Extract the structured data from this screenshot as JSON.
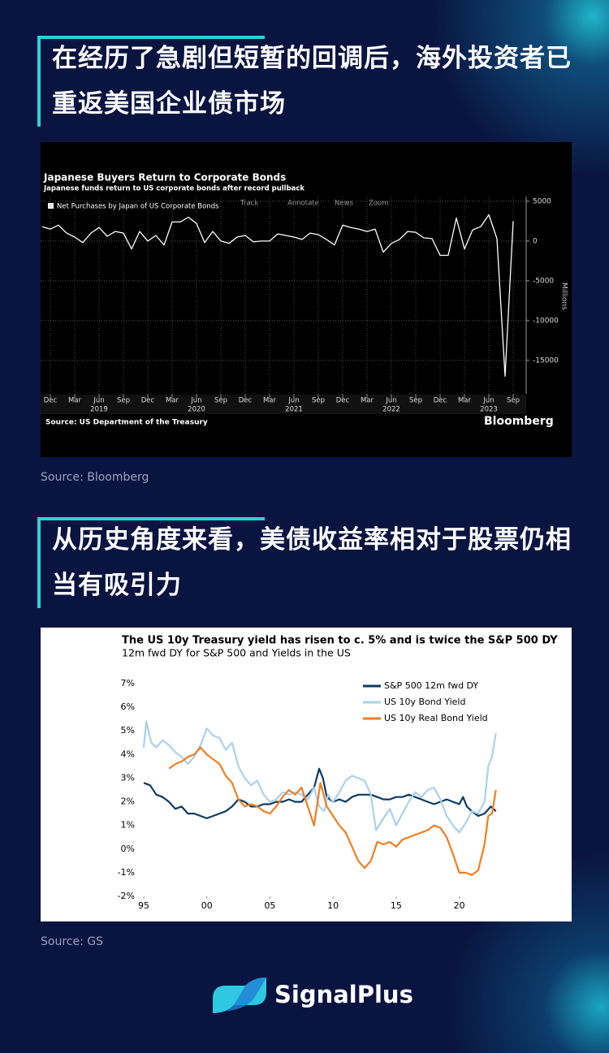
{
  "heading_1": "在经历了急剧但短暂的回调后，海外投资者已重返美国企业债市场",
  "source_1": "Source: Bloomberg",
  "heading_2": "从历史角度来看，美债收益率相对于股票仍相当有吸引力",
  "source_2": "Source: GS",
  "logo": "SignalPlus",
  "chart_data": [
    {
      "type": "line",
      "title": "Japanese Buyers Return to Corporate Bonds",
      "subtitle": "Japanese funds return to US corporate bonds after record pullback",
      "toolbar": [
        "Track",
        "Annotate",
        "News",
        "Zoom"
      ],
      "y_label": "Millions",
      "source": "Source: US Department of the Treasury",
      "brand": "Bloomberg",
      "categories": [
        null,
        "Dec",
        null,
        null,
        "Mar",
        null,
        null,
        "Jun",
        null,
        null,
        "Sep",
        null,
        null,
        "Dec",
        null,
        null,
        "Mar",
        null,
        null,
        "Jun",
        null,
        null,
        "Sep",
        null,
        null,
        "Dec",
        null,
        null,
        "Mar",
        null,
        null,
        "Jun",
        null,
        null,
        "Sep",
        null,
        null,
        "Dec",
        null,
        null,
        "Mar",
        null,
        null,
        "Jun",
        null,
        null,
        "Sep",
        null,
        null,
        "Dec",
        null,
        null,
        "Mar",
        null,
        null,
        "Jun",
        null,
        null,
        "Sep"
      ],
      "year_labels": [
        "2019",
        "2020",
        "2021",
        "2022",
        "2023"
      ],
      "series": [
        {
          "name": "Net Purchases by Japan of US Corporate Bonds",
          "color": "#ffffff",
          "values": [
            1800,
            1500,
            2000,
            1000,
            500,
            -200,
            1000,
            1700,
            600,
            1200,
            1000,
            -1000,
            1200,
            0,
            700,
            -500,
            2400,
            2400,
            3000,
            2200,
            -200,
            1200,
            0,
            -300,
            500,
            700,
            -100,
            0,
            0,
            900,
            700,
            500,
            200,
            1000,
            800,
            200,
            -500,
            2000,
            1700,
            1500,
            1200,
            1500,
            -1400,
            -300,
            200,
            1200,
            1100,
            400,
            300,
            -1800,
            -1800,
            2900,
            -1000,
            1400,
            1800,
            3300,
            300,
            -17000,
            2500
          ]
        }
      ],
      "ylim": [
        -19200,
        5600
      ],
      "yticks": [
        5000,
        0,
        -5000,
        -10000,
        -15000
      ],
      "y_axis_side": "right",
      "grid": true
    },
    {
      "type": "line",
      "title": "The US 10y Treasury yield has risen to c. 5% and is twice the S&P 500 DY",
      "subtitle": "12m fwd DY for S&P 500 and Yields in the US",
      "legend": "upper right",
      "grid": false,
      "xlim": [
        1995,
        2023.5
      ],
      "xticks": [
        {
          "value": 1995,
          "label": "95"
        },
        {
          "value": 2000,
          "label": "00"
        },
        {
          "value": 2005,
          "label": "05"
        },
        {
          "value": 2010,
          "label": "10"
        },
        {
          "value": 2015,
          "label": "15"
        },
        {
          "value": 2020,
          "label": "20"
        }
      ],
      "ylim": [
        -2,
        7
      ],
      "yticks": [
        {
          "value": 7,
          "label": "7%"
        },
        {
          "value": 6,
          "label": "6%"
        },
        {
          "value": 5,
          "label": "5%"
        },
        {
          "value": 4,
          "label": "4%"
        },
        {
          "value": 3,
          "label": "3%"
        },
        {
          "value": 2,
          "label": "2%"
        },
        {
          "value": 1,
          "label": "1%"
        },
        {
          "value": 0,
          "label": "0%"
        },
        {
          "value": -1,
          "label": "-1%"
        },
        {
          "value": -2,
          "label": "-2%"
        }
      ],
      "series": [
        {
          "name": "S&P 500 12m fwd DY",
          "color": "#0d3a63",
          "x": [
            1995,
            1995.5,
            1996,
            1996.5,
            1997,
            1997.5,
            1998,
            1998.5,
            1999,
            1999.5,
            2000,
            2000.5,
            2001,
            2001.5,
            2002,
            2002.5,
            2003,
            2003.5,
            2004,
            2004.5,
            2005,
            2005.5,
            2006,
            2006.5,
            2007,
            2007.5,
            2008,
            2008.5,
            2008.9,
            2009.2,
            2009.5,
            2010,
            2010.5,
            2011,
            2011.5,
            2012,
            2012.5,
            2013,
            2013.5,
            2014,
            2014.5,
            2015,
            2015.5,
            2016,
            2016.5,
            2017,
            2017.5,
            2018,
            2018.5,
            2019,
            2019.5,
            2020,
            2020.3,
            2020.6,
            2021,
            2021.5,
            2022,
            2022.5,
            2022.9
          ],
          "values": [
            2.8,
            2.7,
            2.3,
            2.2,
            2.0,
            1.7,
            1.8,
            1.5,
            1.5,
            1.4,
            1.3,
            1.4,
            1.5,
            1.6,
            1.8,
            2.1,
            2.0,
            1.8,
            1.8,
            1.9,
            1.9,
            2.0,
            2.0,
            2.1,
            2.0,
            2.0,
            2.3,
            2.6,
            3.4,
            3.0,
            2.2,
            2.0,
            2.1,
            2.0,
            2.2,
            2.3,
            2.3,
            2.3,
            2.2,
            2.1,
            2.1,
            2.2,
            2.2,
            2.3,
            2.2,
            2.1,
            2.0,
            1.9,
            2.0,
            2.1,
            2.0,
            1.9,
            2.2,
            1.8,
            1.6,
            1.4,
            1.5,
            1.8,
            1.6
          ]
        },
        {
          "name": "US 10y Bond Yield",
          "color": "#a9d1ec",
          "x": [
            1995,
            1995.2,
            1995.6,
            1996,
            1996.5,
            1997,
            1997.5,
            1998,
            1998.5,
            1999,
            1999.5,
            2000,
            2000.5,
            2001,
            2001.5,
            2002,
            2002.5,
            2003,
            2003.5,
            2004,
            2004.5,
            2005,
            2005.5,
            2006,
            2006.5,
            2007,
            2007.5,
            2008,
            2008.5,
            2008.9,
            2009.3,
            2009.6,
            2010,
            2010.5,
            2011,
            2011.5,
            2012,
            2012.5,
            2013,
            2013.4,
            2014,
            2014.5,
            2015,
            2015.5,
            2016,
            2016.5,
            2017,
            2017.5,
            2018,
            2018.5,
            2019,
            2019.5,
            2020,
            2020.5,
            2021,
            2021.5,
            2022,
            2022.3,
            2022.6,
            2022.9
          ],
          "values": [
            4.3,
            5.4,
            4.5,
            4.3,
            4.6,
            4.4,
            4.1,
            3.9,
            3.6,
            3.9,
            4.4,
            5.1,
            4.8,
            4.7,
            4.2,
            4.5,
            3.5,
            3.0,
            2.7,
            2.9,
            2.3,
            2.0,
            2.1,
            2.4,
            2.3,
            2.4,
            2.3,
            2.1,
            2.6,
            1.8,
            1.6,
            2.3,
            2.0,
            2.4,
            2.9,
            3.1,
            3.0,
            2.9,
            2.3,
            0.8,
            1.3,
            1.7,
            1.0,
            1.5,
            2.0,
            2.4,
            2.2,
            2.5,
            2.6,
            2.1,
            1.4,
            1.0,
            0.7,
            1.1,
            1.6,
            1.5,
            2.0,
            3.5,
            3.9,
            4.9
          ]
        },
        {
          "name": "US 10y Real Bond Yield",
          "color": "#f07e22",
          "x": [
            1997,
            1997.5,
            1998,
            1998.5,
            1999,
            1999.5,
            2000,
            2000.5,
            2001,
            2001.5,
            2002,
            2002.5,
            2003,
            2003.5,
            2004,
            2004.5,
            2005,
            2005.5,
            2006,
            2006.5,
            2007,
            2007.5,
            2008,
            2008.5,
            2009,
            2009.5,
            2010,
            2010.5,
            2011,
            2011.5,
            2012,
            2012.5,
            2013,
            2013.5,
            2014,
            2014.5,
            2015,
            2015.5,
            2016,
            2016.5,
            2017,
            2017.5,
            2018,
            2018.5,
            2019,
            2019.5,
            2020,
            2020.5,
            2021,
            2021.5,
            2022,
            2022.3,
            2022.6,
            2022.9
          ],
          "values": [
            3.4,
            3.6,
            3.7,
            3.9,
            4.0,
            4.3,
            4.0,
            3.8,
            3.6,
            3.1,
            2.8,
            2.1,
            1.8,
            1.9,
            1.8,
            1.6,
            1.5,
            1.8,
            2.2,
            2.5,
            2.3,
            2.6,
            1.8,
            1.0,
            2.8,
            1.8,
            1.4,
            1.0,
            0.7,
            0.1,
            -0.5,
            -0.8,
            -0.5,
            0.3,
            0.2,
            0.3,
            0.1,
            0.4,
            0.5,
            0.6,
            0.7,
            0.8,
            1.0,
            0.9,
            0.5,
            -0.2,
            -1.0,
            -1.0,
            -1.1,
            -0.9,
            0.2,
            1.4,
            1.5,
            2.5
          ]
        }
      ]
    }
  ]
}
